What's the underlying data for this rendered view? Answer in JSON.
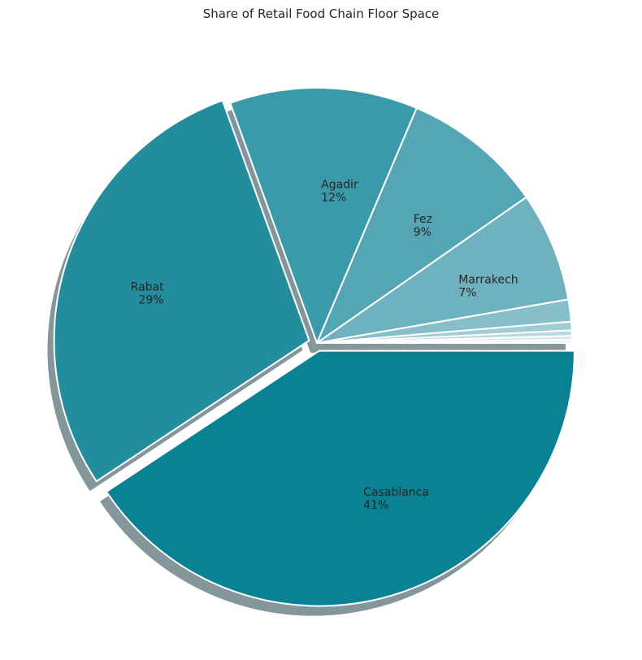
{
  "chart_data": {
    "type": "pie",
    "title": "Share of Retail Food Chain Floor Space",
    "slices": [
      {
        "label": "Casablanca",
        "value": 41,
        "pct_label": "41%",
        "color": "#0a8294",
        "show_label": true
      },
      {
        "label": "Rabat",
        "value": 29,
        "pct_label": "29%",
        "color": "#238d9e",
        "show_label": true
      },
      {
        "label": "Agadir",
        "value": 12,
        "pct_label": "12%",
        "color": "#3b9aaa",
        "show_label": true
      },
      {
        "label": "Fez",
        "value": 9,
        "pct_label": "9%",
        "color": "#54a6b4",
        "show_label": true
      },
      {
        "label": "Marrakech",
        "value": 7,
        "pct_label": "7%",
        "color": "#6db2be",
        "show_label": true
      },
      {
        "label": "",
        "value": 1.4,
        "pct_label": "",
        "color": "#86bfc9",
        "show_label": false
      },
      {
        "label": "",
        "value": 0.55,
        "pct_label": "",
        "color": "#a0ccd4",
        "show_label": false
      },
      {
        "label": "",
        "value": 0.35,
        "pct_label": "",
        "color": "#bad9df",
        "show_label": false
      },
      {
        "label": "",
        "value": 0.25,
        "pct_label": "",
        "color": "#d3e6ea",
        "show_label": false
      },
      {
        "label": "",
        "value": 0.2,
        "pct_label": "",
        "color": "#ecf3f5",
        "show_label": false
      }
    ],
    "start_angle_deg": 0,
    "direction": "clockwise",
    "exploded": [
      "Casablanca",
      "Rabat"
    ],
    "shadow": true,
    "legend": "none"
  }
}
